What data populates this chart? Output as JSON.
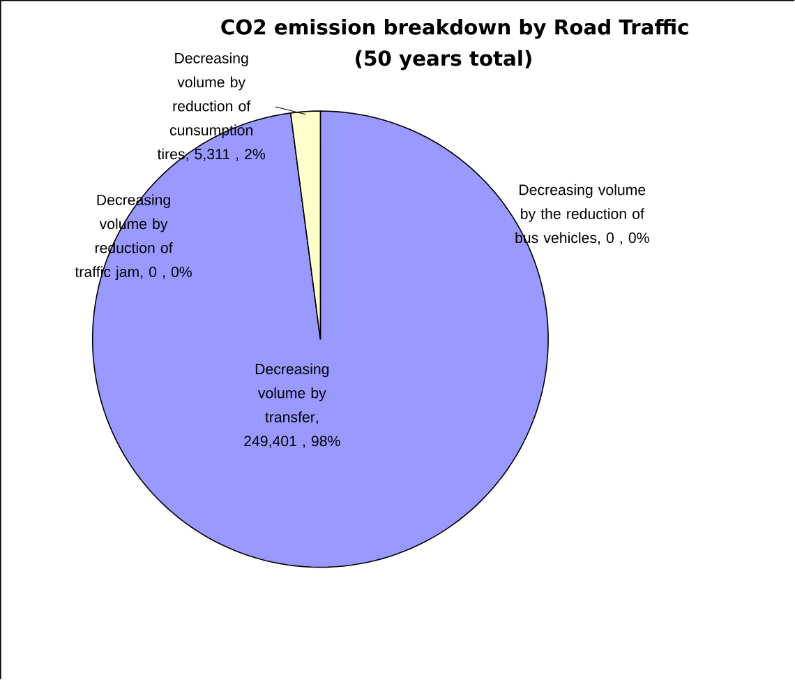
{
  "chart_data": {
    "type": "pie",
    "title": "CO2 emission breakdown by Road Traffic",
    "subtitle": "(50 years total)",
    "categories": [
      "Decreasing volume by the reduction of bus vehicles",
      "Decreasing volume by transfer",
      "Decreasing volume by reduction of traffic jam",
      "Decreasing volume by reduction of cunsumption tires"
    ],
    "values": [
      0,
      249401,
      0,
      5311
    ],
    "value_labels": [
      ", 0 , 0%",
      ", 249,401 , 98%",
      ", 0 , 0%",
      ", 5,311 , 2%"
    ],
    "colors": [
      "#9999ff",
      "#9999ff",
      "#9999ff",
      "#ffffcc"
    ]
  }
}
